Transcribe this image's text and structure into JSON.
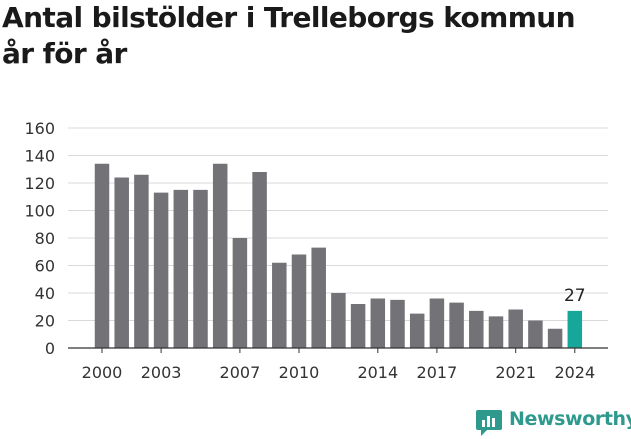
{
  "title_line1": "Antal bilstölder i Trelleborgs kommun",
  "title_line2": "år för år",
  "brand": {
    "name": "Newsworthy",
    "color": "#2e9a8d"
  },
  "colors": {
    "bar": "#737276",
    "highlight": "#17a69a",
    "grid": "#d9d9d9",
    "axis": "#333333"
  },
  "chart_data": {
    "type": "bar",
    "title": "Antal bilstölder i Trelleborgs kommun år för år",
    "xlabel": "",
    "ylabel": "",
    "ylim": [
      0,
      160
    ],
    "yticks": [
      0,
      20,
      40,
      60,
      80,
      100,
      120,
      140,
      160
    ],
    "categories": [
      "2000",
      "2001",
      "2002",
      "2003",
      "2004",
      "2005",
      "2006",
      "2007",
      "2008",
      "2009",
      "2010",
      "2011",
      "2012",
      "2013",
      "2014",
      "2015",
      "2016",
      "2017",
      "2018",
      "2019",
      "2020",
      "2021",
      "2022",
      "2023",
      "2024"
    ],
    "values": [
      134,
      124,
      126,
      113,
      115,
      115,
      134,
      80,
      128,
      62,
      68,
      73,
      40,
      32,
      36,
      35,
      25,
      36,
      33,
      27,
      23,
      28,
      20,
      14,
      27
    ],
    "xtick_labels": [
      "2000",
      "2003",
      "2007",
      "2010",
      "2014",
      "2017",
      "2021",
      "2024"
    ],
    "highlight": {
      "category": "2024",
      "label": "27"
    },
    "grid": true
  }
}
